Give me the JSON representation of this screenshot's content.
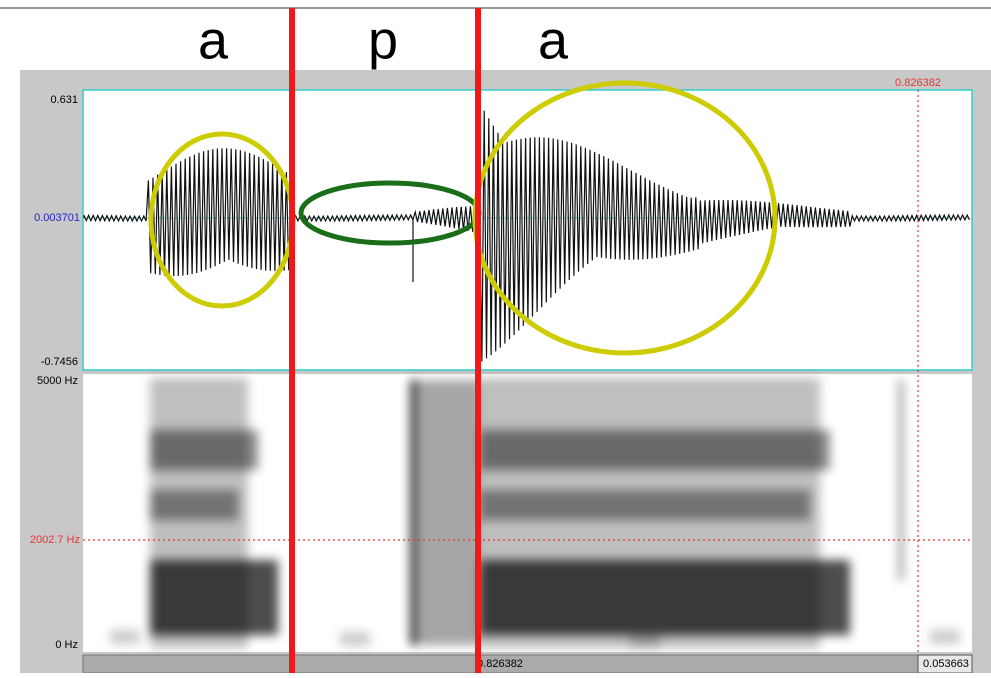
{
  "segments": [
    "a",
    "p",
    "a"
  ],
  "cursor": {
    "top_time": "0.826382",
    "bottom_time": "0.826382",
    "window_duration": "0.053663"
  },
  "waveform": {
    "max": "0.631",
    "cursor_value": "0.003701",
    "min": "-0.7456"
  },
  "spectrogram": {
    "max_freq": "5000 Hz",
    "cursor_freq": "2002.7 Hz",
    "min_freq": "0 Hz"
  }
}
